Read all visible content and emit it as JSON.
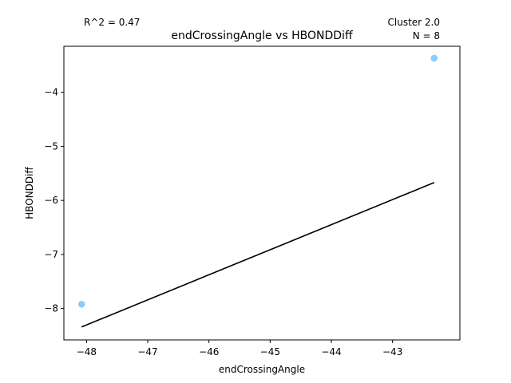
{
  "chart_data": {
    "type": "scatter",
    "title": "endCrossingAngle vs HBONDDiff",
    "xlabel": "endCrossingAngle",
    "ylabel": "HBONDDiff",
    "xlim": [
      -48.37,
      -41.9
    ],
    "ylim": [
      -8.58,
      -3.15
    ],
    "xticks": [
      -48,
      -47,
      -46,
      -45,
      -44,
      -43
    ],
    "yticks": [
      -8,
      -7,
      -6,
      -5,
      -4
    ],
    "xtick_labels": [
      "−48",
      "−47",
      "−46",
      "−45",
      "−44",
      "−43"
    ],
    "ytick_labels": [
      "−8",
      "−7",
      "−6",
      "−5",
      "−4"
    ],
    "points": [
      {
        "x": -48.08,
        "y": -7.92
      },
      {
        "x": -42.32,
        "y": -3.37
      }
    ],
    "point_color": "#87cefa",
    "fit_line": {
      "x": [
        -48.08,
        -42.32
      ],
      "y": [
        -8.34,
        -5.67
      ],
      "color": "#000000"
    },
    "grid": false,
    "annotations": {
      "r2": "R^2 = 0.47",
      "cluster": "Cluster 2.0",
      "n": "N = 8"
    }
  }
}
